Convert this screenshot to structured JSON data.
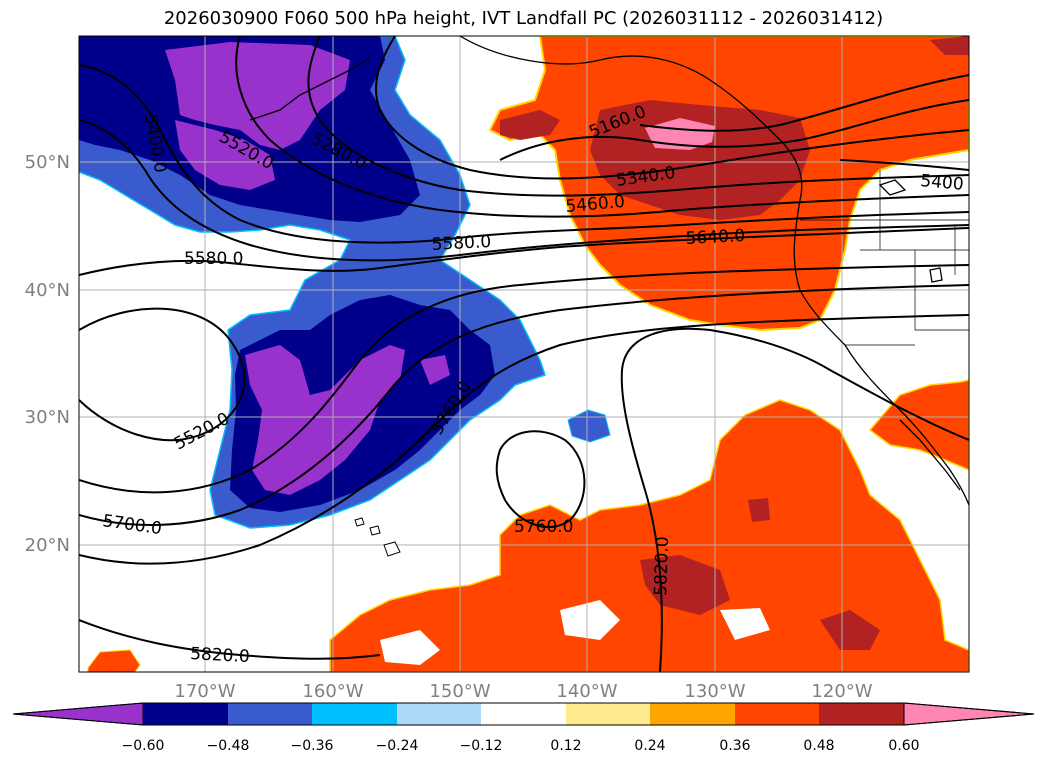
{
  "title": "2026030900 F060 500 hPa height, IVT Landfall PC (2026031112 - 2026031412)",
  "map": {
    "lon_labels": [
      "170°W",
      "160°W",
      "150°W",
      "140°W",
      "130°W",
      "120°W"
    ],
    "lat_labels": [
      "50°N",
      "40°N",
      "30°N",
      "20°N"
    ],
    "contour_labels": [
      {
        "text": "5520.0",
        "role": "upper-left trough"
      },
      {
        "text": "5400.0",
        "role": "far left edge"
      },
      {
        "text": "5280.0",
        "role": "gulf of alaska"
      },
      {
        "text": "5160.0",
        "role": "northeast"
      },
      {
        "text": "5340.0",
        "role": "northeast"
      },
      {
        "text": "5460.0",
        "role": "northeast"
      },
      {
        "text": "5640.0",
        "role": "northeast"
      },
      {
        "text": "5400",
        "role": "right edge"
      },
      {
        "text": "5580.0",
        "role": "central"
      },
      {
        "text": "5580.0",
        "role": "west"
      },
      {
        "text": "5520.0",
        "role": "southwest"
      },
      {
        "text": "5760.0",
        "role": "central tongue"
      },
      {
        "text": "5760.0",
        "role": "subtropical high"
      },
      {
        "text": "5700.0",
        "role": "southwest"
      },
      {
        "text": "5820.0",
        "role": "south"
      },
      {
        "text": "5820.0",
        "role": "south-central"
      }
    ]
  },
  "colorbar": {
    "colors": [
      "#9932cc",
      "#00008b",
      "#3a5bcd",
      "#00bfff",
      "#add8f7",
      "#ffffff",
      "#ffeb8f",
      "#ffa500",
      "#ff4500",
      "#b22222",
      "#ff85b3"
    ],
    "tick_labels": [
      "−0.60",
      "−0.48",
      "−0.36",
      "−0.24",
      "−0.12",
      "0.12",
      "0.24",
      "0.36",
      "0.48",
      "0.60"
    ]
  }
}
